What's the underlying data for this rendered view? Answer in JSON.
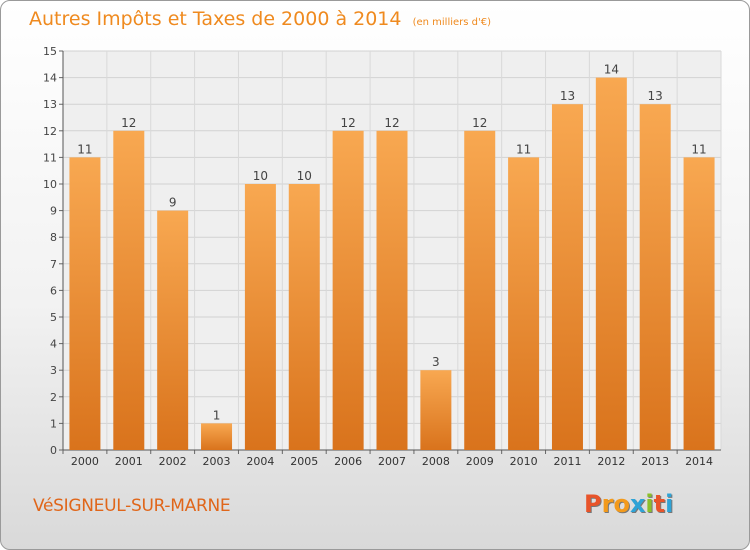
{
  "header": {
    "title": "Autres Impôts et Taxes de 2000 à 2014",
    "subtitle": "(en milliers d'€)"
  },
  "footer": {
    "commune": "VéSIGNEUL-SUR-MARNE",
    "logo_text": "Proxiti"
  },
  "colors": {
    "bar_top": "#f8a851",
    "bar_bottom": "#d9731c",
    "title": "#ef8a1f",
    "logo": [
      "#e8542a",
      "#f39a1b",
      "#f39a1b",
      "#2fa3d6",
      "#8bbf2a",
      "#e8542a",
      "#2fa3d6"
    ]
  },
  "chart_data": {
    "type": "bar",
    "categories": [
      "2000",
      "2001",
      "2002",
      "2003",
      "2004",
      "2005",
      "2006",
      "2007",
      "2008",
      "2009",
      "2010",
      "2011",
      "2012",
      "2013",
      "2014"
    ],
    "values": [
      11,
      12,
      9,
      1,
      10,
      10,
      12,
      12,
      3,
      12,
      11,
      13,
      14,
      13,
      11
    ],
    "ylim": [
      0,
      15
    ],
    "yticks": [
      0,
      1,
      2,
      3,
      4,
      5,
      6,
      7,
      8,
      9,
      10,
      11,
      12,
      13,
      14,
      15
    ],
    "grid": true,
    "data_labels": true
  }
}
